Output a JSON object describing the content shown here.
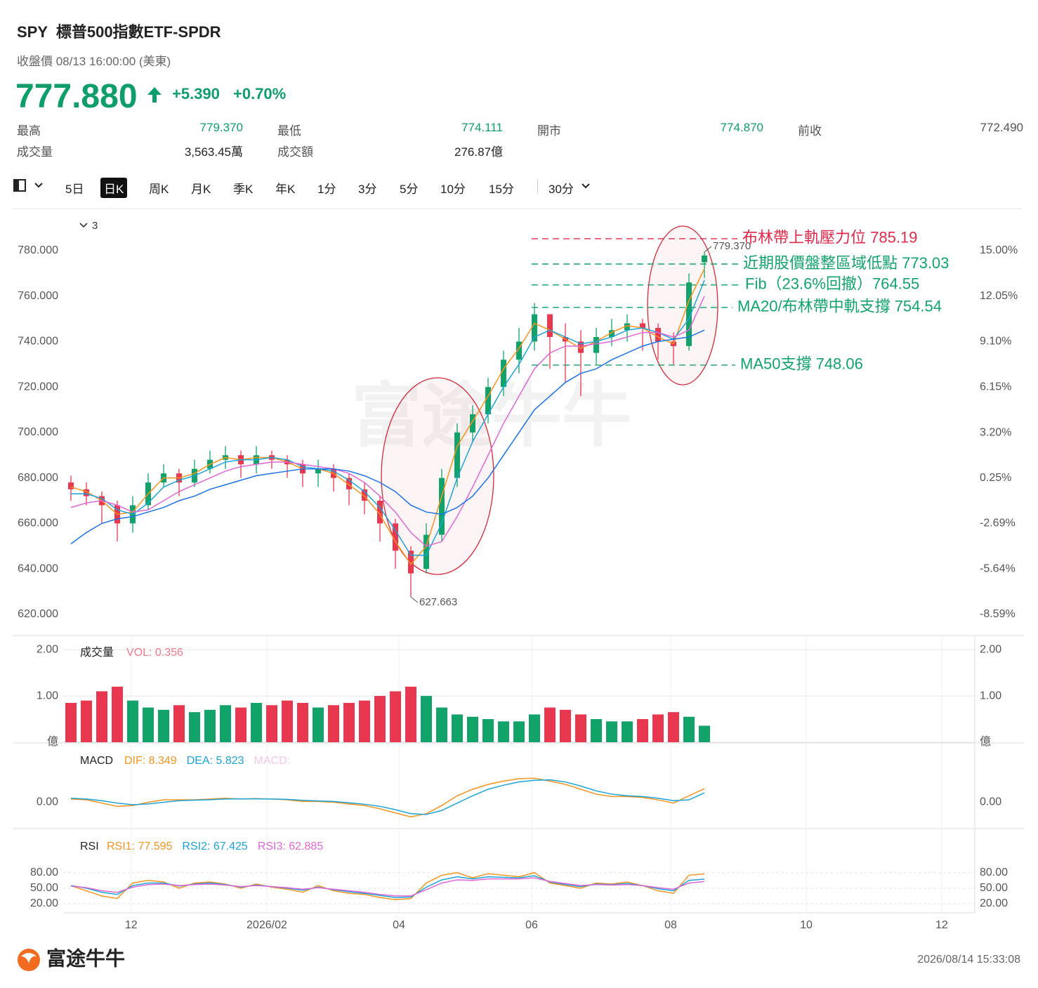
{
  "header": {
    "title": "SPY  標普500指數ETF-SPDR",
    "subtitle": "收盤價 08/13 16:00:00 (美東)",
    "price": "777.880",
    "change": "+5.390",
    "change_pct": "+0.70%",
    "color": "#0d9e6a"
  },
  "stats": [
    {
      "label": "最高",
      "value": "779.370",
      "color": "#0d9e6a"
    },
    {
      "label": "最低",
      "value": "774.111",
      "color": "#0d9e6a"
    },
    {
      "label": "開市",
      "value": "774.870",
      "color": "#0d9e6a"
    },
    {
      "label": "前收",
      "value": "772.490",
      "color": "#555"
    },
    {
      "label": "成交量",
      "value": "3,563.45萬",
      "color": "#222"
    },
    {
      "label": "成交額",
      "value": "276.87億",
      "color": "#222"
    }
  ],
  "tabs": [
    "5日",
    "日K",
    "周K",
    "月K",
    "季K",
    "年K",
    "1分",
    "3分",
    "5分",
    "10分",
    "15分",
    "30分"
  ],
  "selected_tab_index": 1,
  "indicator_count": "3",
  "watermark": "富途牛牛",
  "footer": {
    "logo": "富途牛牛",
    "timestamp": "2026/08/14 15:33:08"
  },
  "chart_data": [
    {
      "type": "candlestick",
      "up_color": "#12a36a",
      "down_color": "#e8374e",
      "open": [
        678,
        675,
        672,
        668,
        660,
        668,
        678,
        682,
        678,
        684,
        688,
        690,
        686,
        690,
        688,
        686,
        682,
        684,
        680,
        675,
        670,
        660,
        648,
        640,
        655,
        680,
        700,
        708,
        720,
        732,
        740,
        752,
        742,
        740,
        735,
        742,
        745,
        748,
        746,
        740,
        738,
        774.87
      ],
      "high": [
        681,
        678,
        674,
        670,
        672,
        682,
        686,
        684,
        688,
        692,
        694,
        692,
        694,
        692,
        690,
        688,
        688,
        686,
        682,
        678,
        672,
        662,
        650,
        660,
        684,
        704,
        712,
        724,
        736,
        746,
        757,
        752,
        748,
        745,
        746,
        750,
        752,
        750,
        748,
        744,
        770,
        779.37
      ],
      "low": [
        670,
        668,
        660,
        652,
        656,
        666,
        676,
        672,
        676,
        682,
        684,
        680,
        682,
        684,
        680,
        676,
        676,
        674,
        668,
        664,
        652,
        640,
        627.663,
        638,
        652,
        676,
        696,
        704,
        716,
        726,
        736,
        728,
        722,
        716,
        730,
        738,
        740,
        736,
        732,
        730,
        736,
        768
      ],
      "close": [
        675,
        672,
        668,
        660,
        668,
        678,
        682,
        678,
        684,
        688,
        690,
        686,
        690,
        688,
        686,
        682,
        684,
        680,
        675,
        670,
        660,
        648,
        638,
        655,
        680,
        700,
        708,
        720,
        732,
        740,
        752,
        742,
        740,
        735,
        742,
        745,
        748,
        746,
        740,
        738,
        766,
        777.88
      ],
      "series": [
        {
          "color": "#f7931e",
          "values": [
            676,
            674,
            670,
            664,
            665,
            673,
            680,
            680,
            682,
            686,
            689,
            688,
            689,
            689,
            687,
            684,
            684,
            682,
            677,
            672,
            664,
            652,
            642,
            650,
            672,
            694,
            705,
            716,
            728,
            737,
            748,
            745,
            741,
            737,
            740,
            744,
            747,
            746,
            742,
            739,
            758,
            772
          ]
        },
        {
          "color": "#1ca3d8",
          "values": [
            673,
            673,
            671,
            666,
            664,
            669,
            676,
            679,
            681,
            684,
            687,
            688,
            688,
            689,
            688,
            685,
            684,
            683,
            679,
            674,
            667,
            657,
            646,
            646,
            660,
            680,
            696,
            708,
            720,
            730,
            742,
            745,
            742,
            739,
            740,
            742,
            745,
            746,
            744,
            741,
            750,
            767
          ]
        },
        {
          "color": "#e066d6",
          "values": [
            667,
            669,
            670,
            668,
            665,
            666,
            670,
            674,
            677,
            680,
            683,
            685,
            686,
            687,
            687,
            686,
            685,
            684,
            682,
            678,
            672,
            665,
            656,
            650,
            652,
            663,
            676,
            690,
            704,
            716,
            728,
            735,
            738,
            738,
            739,
            740,
            742,
            744,
            744,
            742,
            745,
            760
          ]
        },
        {
          "color": "#1a73e8",
          "values": [
            651,
            656,
            660,
            662,
            663,
            665,
            667,
            670,
            672,
            675,
            677,
            679,
            681,
            682,
            683,
            684,
            684,
            684,
            683,
            681,
            678,
            674,
            668,
            665,
            664,
            667,
            672,
            680,
            690,
            700,
            710,
            716,
            722,
            726,
            728,
            732,
            735,
            738,
            740,
            741,
            742,
            745
          ]
        }
      ],
      "ylim": [
        610.7,
        798.5
      ],
      "yticks": [
        {
          "value": 620,
          "label": "620.000"
        },
        {
          "value": 640,
          "label": "640.000"
        },
        {
          "value": 660,
          "label": "660.000"
        },
        {
          "value": 680,
          "label": "680.000"
        },
        {
          "value": 700,
          "label": "700.000"
        },
        {
          "value": 720,
          "label": "720.000"
        },
        {
          "value": 740,
          "label": "740.000"
        },
        {
          "value": 760,
          "label": "760.000"
        },
        {
          "value": 780,
          "label": "780.000"
        }
      ],
      "y2lim": [
        -9.96,
        17.73
      ],
      "y2ticks": [
        {
          "value": 15,
          "label": "15.00%"
        },
        {
          "value": 12.05,
          "label": "12.05%"
        },
        {
          "value": 9.1,
          "label": "9.10%"
        },
        {
          "value": 6.15,
          "label": "6.15%"
        },
        {
          "value": 3.2,
          "label": "3.20%"
        },
        {
          "value": 0.25,
          "label": "0.25%"
        },
        {
          "value": -2.69,
          "label": "-2.69%"
        },
        {
          "value": -5.64,
          "label": "-5.64%"
        },
        {
          "value": -8.59,
          "label": "-8.59%"
        }
      ],
      "extremes": [
        {
          "x": 41,
          "value": 779.37,
          "label": "779.370"
        },
        {
          "x": 22,
          "value": 627.663,
          "label": "627.663"
        }
      ],
      "annotations": [
        {
          "text": "布林帶上軌壓力位 785.19",
          "y": 785.25,
          "color": "#e0294a"
        },
        {
          "text": "近期股價盤整區域低點 773.03",
          "y": 774.1,
          "color": "#12a36a"
        },
        {
          "text": "Fib（23.6%回撤）764.55",
          "y": 764.9,
          "color": "#12a36a"
        },
        {
          "text": "MA20/布林帶中軌支撐 754.54",
          "y": 755.0,
          "color": "#12a36a"
        },
        {
          "text": "MA50支撐 748.06",
          "y": 729.65,
          "color": "#12a36a"
        }
      ]
    },
    {
      "type": "bar",
      "title": "成交量",
      "value_text": "VOL: 0.356",
      "value_color": "#f07a8a",
      "grid": true,
      "values": [
        0.85,
        0.9,
        1.1,
        1.2,
        0.9,
        0.75,
        0.7,
        0.8,
        0.65,
        0.7,
        0.8,
        0.75,
        0.85,
        0.8,
        0.9,
        0.85,
        0.75,
        0.8,
        0.85,
        0.9,
        1.0,
        1.1,
        1.2,
        1.0,
        0.75,
        0.6,
        0.55,
        0.5,
        0.45,
        0.45,
        0.6,
        0.75,
        0.7,
        0.6,
        0.5,
        0.45,
        0.45,
        0.5,
        0.6,
        0.65,
        0.55,
        0.356
      ],
      "ylim": [
        0,
        2.26
      ],
      "yticks": [
        {
          "value": 0,
          "label": "億"
        },
        {
          "value": 1,
          "label": "1.00"
        },
        {
          "value": 2,
          "label": "2.00"
        }
      ]
    },
    {
      "type": "line",
      "title": "MACD",
      "legend": [
        {
          "text": "DIF: 8.349",
          "color": "#f7931e"
        },
        {
          "text": "DEA: 5.823",
          "color": "#1ca3d8"
        },
        {
          "text": "MACD:",
          "color": "#f4c6ec"
        }
      ],
      "series": [
        {
          "color": "#f7931e",
          "values": [
            2,
            1.5,
            -0.5,
            -2.5,
            -2,
            0,
            1.5,
            1.5,
            1.5,
            2,
            2.5,
            2,
            2.3,
            2,
            1.5,
            0.5,
            0.5,
            0,
            -1,
            -2,
            -4,
            -6.5,
            -9,
            -7,
            -2,
            4,
            8,
            11,
            13,
            14.5,
            14.8,
            13,
            11,
            8,
            5,
            3.5,
            3.5,
            3,
            1.5,
            -0.5,
            4,
            8.349
          ]
        },
        {
          "color": "#1ca3d8",
          "values": [
            2.5,
            2,
            1,
            -0.5,
            -1.5,
            -1,
            0,
            1,
            1.3,
            1.6,
            2,
            2.1,
            2.1,
            2,
            1.8,
            1.2,
            0.8,
            0.5,
            -0.3,
            -1.2,
            -2.5,
            -4.5,
            -7,
            -7.5,
            -5,
            -0.5,
            4,
            8,
            10.5,
            12.5,
            13.5,
            13.8,
            12.5,
            10,
            7,
            5,
            4,
            3.5,
            2.5,
            1,
            1.5,
            5.823
          ]
        }
      ],
      "ylim": [
        -15.3,
        35.6
      ],
      "yticks": [
        {
          "value": 0,
          "label": "0.00"
        }
      ]
    },
    {
      "type": "line",
      "title": "RSI",
      "grid": true,
      "legend": [
        {
          "text": "RSI1: 77.595",
          "color": "#f7931e"
        },
        {
          "text": "RSI2: 67.425",
          "color": "#1ca3d8"
        },
        {
          "text": "RSI3: 62.885",
          "color": "#e066d6"
        }
      ],
      "series": [
        {
          "color": "#f7931e",
          "values": [
            55,
            45,
            35,
            30,
            60,
            65,
            62,
            50,
            60,
            62,
            58,
            50,
            58,
            52,
            48,
            42,
            55,
            45,
            40,
            38,
            32,
            28,
            30,
            60,
            75,
            80,
            70,
            78,
            75,
            72,
            80,
            60,
            55,
            50,
            60,
            58,
            62,
            55,
            45,
            40,
            75,
            77.595
          ]
        },
        {
          "color": "#1ca3d8",
          "values": [
            55,
            50,
            42,
            38,
            55,
            60,
            60,
            54,
            58,
            60,
            57,
            52,
            56,
            53,
            50,
            46,
            52,
            47,
            43,
            40,
            36,
            32,
            33,
            52,
            66,
            72,
            68,
            72,
            71,
            70,
            74,
            62,
            57,
            53,
            58,
            57,
            59,
            55,
            49,
            45,
            65,
            67.425
          ]
        },
        {
          "color": "#e066d6",
          "values": [
            54,
            51,
            45,
            42,
            52,
            57,
            58,
            55,
            57,
            58,
            56,
            53,
            55,
            53,
            51,
            48,
            51,
            48,
            45,
            42,
            38,
            35,
            35,
            47,
            60,
            66,
            65,
            68,
            68,
            68,
            70,
            63,
            59,
            55,
            57,
            56,
            57,
            55,
            51,
            48,
            60,
            62.885
          ]
        }
      ],
      "ylim": [
        2.3,
        100
      ],
      "yticks": [
        {
          "value": 20,
          "label": "20.00"
        },
        {
          "value": 50,
          "label": "50.00"
        },
        {
          "value": 80,
          "label": "80.00"
        }
      ],
      "xlim": [
        -0.5,
        58.5
      ],
      "xticks": [
        {
          "value": 3.9,
          "label": "12"
        },
        {
          "value": 12.68,
          "label": "2026/02"
        },
        {
          "value": 21.23,
          "label": "04"
        },
        {
          "value": 29.82,
          "label": "06"
        },
        {
          "value": 38.82,
          "label": "08"
        },
        {
          "value": 47.59,
          "label": "10"
        },
        {
          "value": 56.36,
          "label": "12"
        }
      ]
    }
  ]
}
